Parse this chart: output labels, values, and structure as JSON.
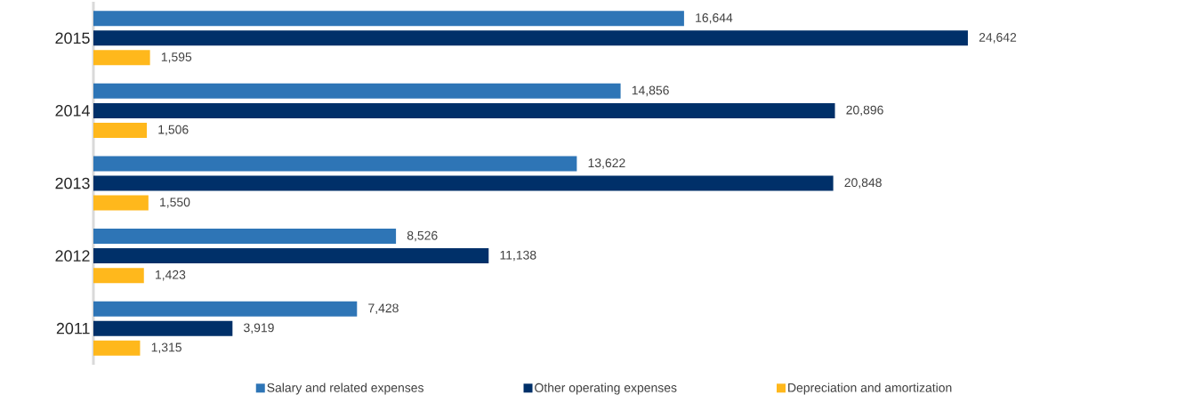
{
  "chart_data": {
    "type": "bar",
    "orientation": "horizontal",
    "categories": [
      "2015",
      "2014",
      "2013",
      "2012",
      "2011"
    ],
    "series": [
      {
        "name": "Salary and related expenses",
        "color": "#2e75b6",
        "values": [
          16644,
          14856,
          13622,
          8526,
          7428
        ],
        "value_labels": [
          "16,644",
          "14,856",
          "13,622",
          "8,526",
          "7,428"
        ]
      },
      {
        "name": "Other operating expenses",
        "color": "#003069",
        "values": [
          24642,
          20896,
          20848,
          11138,
          3919
        ],
        "value_labels": [
          "24,642",
          "20,896",
          "20,848",
          "11,138",
          "3,919"
        ]
      },
      {
        "name": "Depreciation and amortization",
        "color": "#ffb81c",
        "values": [
          1595,
          1506,
          1550,
          1423,
          1315
        ],
        "value_labels": [
          "1,595",
          "1,506",
          "1,550",
          "1,423",
          "1,315"
        ]
      }
    ],
    "legend": "bottom"
  }
}
